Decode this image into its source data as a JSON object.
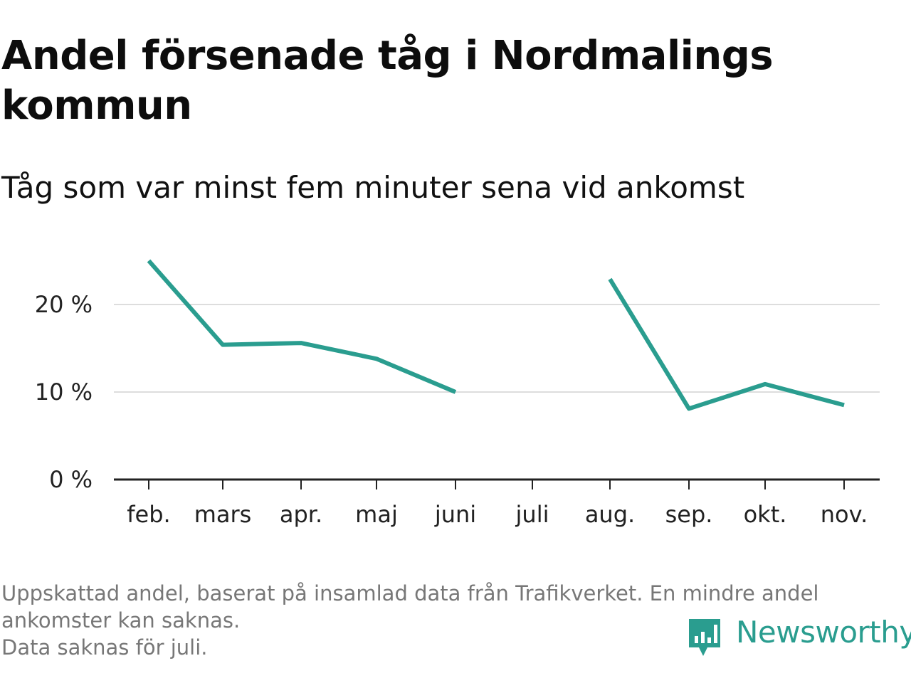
{
  "title": "Andel försenade tåg i Nordmalings kommun",
  "subtitle": "Tåg som var minst fem minuter sena vid ankomst",
  "footnote": {
    "line1": "Uppskattad andel, baserat på insamlad data från Trafikverket. En mindre andel",
    "line2": "ankomster kan saknas.",
    "line3": "Data saknas för juli."
  },
  "brand": {
    "name": "Newsworthy",
    "icon": "newsworthy-logo-icon",
    "color": "#2a9d8f"
  },
  "chart_data": {
    "type": "line",
    "categories": [
      "feb.",
      "mars",
      "apr.",
      "maj",
      "juni",
      "juli",
      "aug.",
      "sep.",
      "okt.",
      "nov."
    ],
    "series": [
      {
        "values": [
          25.0,
          15.4,
          15.6,
          13.8,
          10.0,
          null,
          22.9,
          8.1,
          10.9,
          8.5
        ]
      }
    ],
    "y_ticks": [
      0,
      10,
      20
    ],
    "y_tick_labels": [
      "0 %",
      "10 %",
      "20 %"
    ],
    "ylim": [
      0,
      26
    ],
    "grid": true,
    "line_color": "#2a9d8f",
    "xlabel": "",
    "ylabel": ""
  }
}
